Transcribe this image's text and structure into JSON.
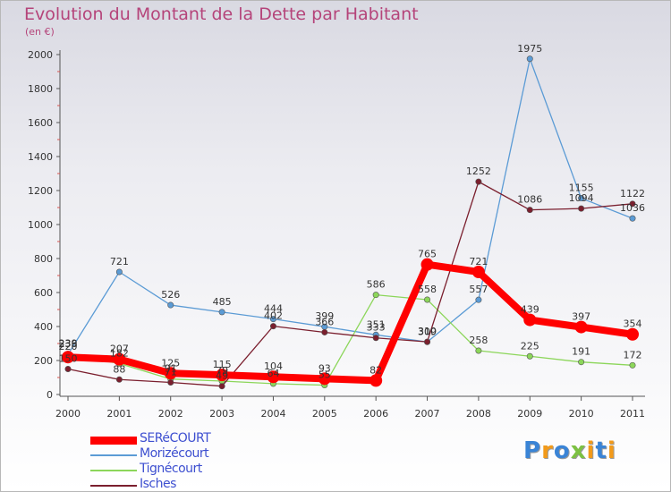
{
  "chart_data": {
    "type": "line",
    "title": "Evolution du Montant de la Dette par Habitant",
    "unit_label": "(en €)",
    "x": [
      "2000",
      "2001",
      "2002",
      "2003",
      "2004",
      "2005",
      "2006",
      "2007",
      "2008",
      "2009",
      "2010",
      "2011"
    ],
    "ylim": [
      0,
      2000
    ],
    "yticks": [
      0,
      200,
      400,
      600,
      800,
      1000,
      1200,
      1400,
      1600,
      1800,
      2000
    ],
    "grid": false,
    "legend_position": "bottom-left",
    "series": [
      {
        "name": "SERéCOURT",
        "color": "#ff0000",
        "emphasis": true,
        "values": [
          220,
          207,
          125,
          115,
          104,
          93,
          82,
          765,
          721,
          439,
          397,
          354
        ]
      },
      {
        "name": "Morizécourt",
        "color": "#5b9bd5",
        "emphasis": false,
        "values": [
          236,
          721,
          526,
          485,
          444,
          399,
          351,
          309,
          557,
          1975,
          1155,
          1036
        ]
      },
      {
        "name": "Tignécourt",
        "color": "#8cd65a",
        "emphasis": false,
        "values": [
          239,
          182,
          91,
          79,
          64,
          55,
          586,
          558,
          258,
          225,
          191,
          172
        ]
      },
      {
        "name": "Isches",
        "color": "#7b1f2e",
        "emphasis": false,
        "values": [
          150,
          88,
          71,
          49,
          402,
          366,
          333,
          310,
          1252,
          1086,
          1094,
          1122
        ]
      }
    ]
  },
  "logo": {
    "letters": [
      {
        "char": "P",
        "color": "#3a84d6"
      },
      {
        "char": "r",
        "color": "#f29a1a"
      },
      {
        "char": "o",
        "color": "#3a84d6"
      },
      {
        "char": "x",
        "color": "#7cc142"
      },
      {
        "char": "i",
        "color": "#f29a1a"
      },
      {
        "char": "t",
        "color": "#3a84d6"
      },
      {
        "char": "i",
        "color": "#f29a1a"
      }
    ]
  }
}
